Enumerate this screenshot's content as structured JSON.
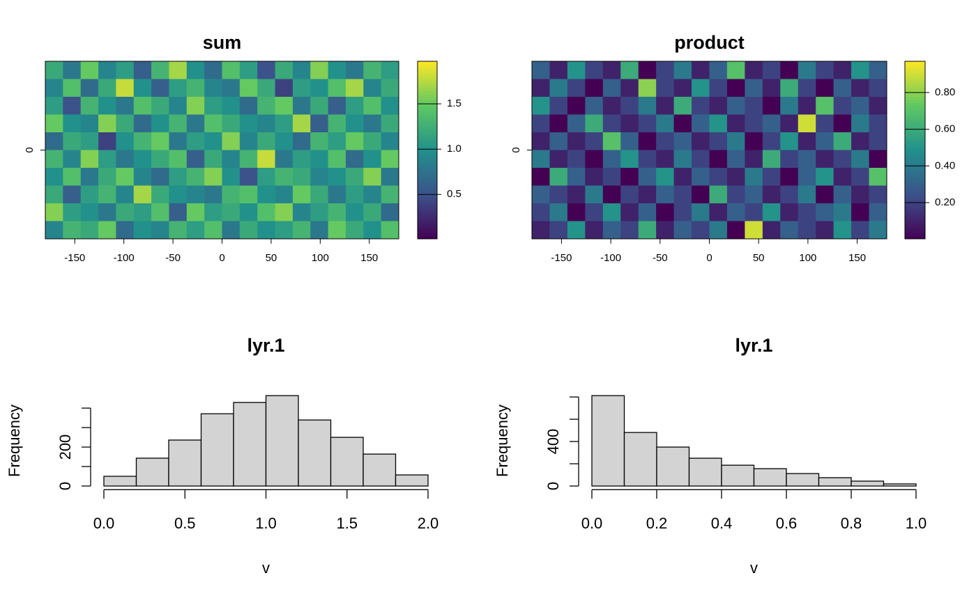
{
  "chart_data": [
    {
      "type": "raster",
      "title": "sum",
      "xlim": [
        -180,
        180
      ],
      "ylim": [
        -90,
        90
      ],
      "xticks": [
        -150,
        -100,
        -50,
        0,
        50,
        100,
        150
      ],
      "yticks": [
        0
      ],
      "zlim": [
        0.01,
        1.97
      ],
      "zticks": [
        {
          "value": 0.5,
          "label": "0.5"
        },
        {
          "value": 1.0,
          "label": "1.0"
        },
        {
          "value": 1.5,
          "label": "1.5"
        }
      ],
      "colors": [
        "#440154",
        "#3b528b",
        "#21908c",
        "#5dc863",
        "#fde725"
      ],
      "values": [
        [
          1.2,
          0.8,
          1.5,
          0.9,
          1.1,
          0.6,
          1.3,
          1.7,
          1.0,
          0.7,
          1.4,
          1.1,
          0.5,
          1.2,
          0.9,
          1.6,
          1.0,
          0.8,
          1.3,
          1.1
        ],
        [
          0.9,
          1.4,
          0.7,
          1.2,
          1.8,
          1.0,
          0.6,
          1.1,
          1.3,
          0.9,
          0.8,
          1.5,
          1.2,
          0.4,
          1.1,
          1.0,
          1.4,
          1.7,
          0.9,
          1.2
        ],
        [
          1.1,
          0.5,
          1.3,
          1.0,
          0.8,
          1.4,
          1.2,
          0.9,
          1.6,
          1.1,
          1.0,
          0.7,
          1.3,
          1.5,
          0.8,
          1.2,
          0.6,
          1.1,
          1.4,
          1.0
        ],
        [
          1.5,
          1.0,
          0.9,
          1.6,
          1.2,
          0.7,
          1.0,
          1.3,
          0.8,
          1.4,
          1.2,
          1.0,
          0.9,
          1.1,
          1.7,
          0.6,
          1.3,
          1.0,
          0.8,
          1.2
        ],
        [
          0.7,
          1.2,
          1.1,
          0.4,
          1.0,
          1.3,
          1.5,
          0.8,
          1.1,
          1.0,
          1.6,
          0.9,
          1.2,
          1.0,
          0.7,
          1.3,
          1.1,
          1.5,
          1.2,
          0.9
        ],
        [
          1.3,
          0.9,
          1.6,
          1.1,
          0.8,
          1.0,
          1.2,
          1.4,
          0.6,
          1.2,
          0.9,
          1.3,
          1.8,
          0.8,
          1.1,
          1.0,
          1.4,
          0.7,
          1.0,
          1.5
        ],
        [
          1.0,
          1.4,
          0.8,
          1.2,
          1.5,
          0.9,
          0.7,
          1.1,
          1.3,
          1.6,
          1.0,
          0.5,
          1.1,
          1.3,
          1.2,
          0.9,
          1.0,
          1.2,
          1.6,
          0.8
        ],
        [
          1.2,
          0.6,
          1.1,
          1.3,
          0.9,
          1.7,
          1.2,
          1.0,
          0.9,
          0.8,
          1.3,
          1.4,
          1.0,
          0.9,
          1.5,
          1.2,
          0.8,
          1.1,
          0.9,
          1.3
        ],
        [
          1.6,
          1.1,
          1.0,
          0.8,
          1.2,
          1.1,
          1.4,
          0.6,
          1.5,
          1.1,
          1.2,
          1.0,
          1.4,
          1.6,
          0.9,
          1.1,
          1.3,
          1.0,
          1.2,
          0.7
        ],
        [
          0.9,
          1.3,
          1.2,
          1.5,
          0.7,
          1.0,
          0.9,
          1.3,
          1.1,
          1.4,
          0.8,
          1.2,
          1.0,
          1.1,
          1.3,
          0.8,
          1.5,
          1.2,
          1.0,
          1.4
        ]
      ]
    },
    {
      "type": "raster",
      "title": "product",
      "xlim": [
        -180,
        180
      ],
      "ylim": [
        -90,
        90
      ],
      "xticks": [
        -150,
        -100,
        -50,
        0,
        50,
        100,
        150
      ],
      "yticks": [
        0
      ],
      "zlim": [
        0.003,
        0.97
      ],
      "zticks": [
        {
          "value": 0.2,
          "label": "0.20"
        },
        {
          "value": 0.4,
          "label": "0.40"
        },
        {
          "value": 0.6,
          "label": "0.60"
        },
        {
          "value": 0.8,
          "label": "0.80"
        }
      ],
      "colors": [
        "#440154",
        "#3b528b",
        "#21908c",
        "#5dc863",
        "#fde725"
      ],
      "values": [
        [
          0.3,
          0.1,
          0.5,
          0.2,
          0.1,
          0.6,
          0.0,
          0.2,
          0.4,
          0.1,
          0.3,
          0.7,
          0.1,
          0.2,
          0.0,
          0.4,
          0.2,
          0.1,
          0.5,
          0.3
        ],
        [
          0.1,
          0.4,
          0.2,
          0.0,
          0.3,
          0.1,
          0.8,
          0.2,
          0.1,
          0.5,
          0.2,
          0.0,
          0.3,
          0.1,
          0.6,
          0.2,
          0.0,
          0.3,
          0.1,
          0.2
        ],
        [
          0.5,
          0.2,
          0.0,
          0.3,
          0.1,
          0.2,
          0.4,
          0.1,
          0.6,
          0.2,
          0.1,
          0.3,
          0.2,
          0.0,
          0.4,
          0.1,
          0.7,
          0.2,
          0.3,
          0.1
        ],
        [
          0.2,
          0.0,
          0.3,
          0.6,
          0.2,
          0.1,
          0.2,
          0.4,
          0.0,
          0.3,
          0.5,
          0.1,
          0.2,
          0.3,
          0.1,
          0.9,
          0.2,
          0.0,
          0.4,
          0.2
        ],
        [
          0.1,
          0.3,
          0.1,
          0.2,
          0.7,
          0.3,
          0.0,
          0.2,
          0.3,
          0.1,
          0.2,
          0.4,
          0.0,
          0.2,
          0.5,
          0.1,
          0.3,
          0.6,
          0.1,
          0.2
        ],
        [
          0.4,
          0.1,
          0.2,
          0.0,
          0.3,
          0.5,
          0.2,
          0.1,
          0.4,
          0.2,
          0.0,
          0.3,
          0.1,
          0.6,
          0.2,
          0.3,
          0.1,
          0.2,
          0.4,
          0.0
        ],
        [
          0.0,
          0.6,
          0.3,
          0.1,
          0.2,
          0.0,
          0.3,
          0.5,
          0.1,
          0.3,
          0.2,
          0.1,
          0.4,
          0.2,
          0.0,
          0.3,
          0.5,
          0.1,
          0.2,
          0.7
        ],
        [
          0.3,
          0.2,
          0.1,
          0.4,
          0.0,
          0.2,
          0.1,
          0.3,
          0.2,
          0.0,
          0.6,
          0.2,
          0.3,
          0.1,
          0.2,
          0.4,
          0.0,
          0.3,
          0.1,
          0.2
        ],
        [
          0.2,
          0.4,
          0.0,
          0.2,
          0.5,
          0.1,
          0.3,
          0.0,
          0.2,
          0.4,
          0.1,
          0.3,
          0.2,
          0.5,
          0.1,
          0.2,
          0.3,
          0.4,
          0.0,
          0.3
        ],
        [
          0.1,
          0.2,
          0.5,
          0.1,
          0.3,
          0.2,
          0.6,
          0.1,
          0.3,
          0.2,
          0.4,
          0.0,
          0.9,
          0.1,
          0.3,
          0.2,
          0.1,
          0.5,
          0.2,
          0.4
        ]
      ]
    },
    {
      "type": "histogram",
      "title": "lyr.1",
      "x_label": "v",
      "y_label": "Frequency",
      "color": "#d3d3d3",
      "bins": [
        0,
        0.2,
        0.4,
        0.6,
        0.8,
        1.0,
        1.2,
        1.4,
        1.6,
        1.8,
        2.0
      ],
      "values": [
        50,
        143,
        236,
        371,
        429,
        464,
        339,
        250,
        164,
        57
      ],
      "xlim": [
        -0.08,
        2.08
      ],
      "ylim": [
        -18.6,
        482.6
      ],
      "xticks": [
        {
          "value": 0,
          "label": "0.0"
        },
        0.5,
        {
          "value": 1,
          "label": "1.0"
        },
        1.5,
        {
          "value": 2,
          "label": "2.0"
        }
      ],
      "yticks": [
        0,
        200
      ],
      "yminor_ticks": [
        100,
        300,
        400
      ]
    },
    {
      "type": "histogram",
      "title": "lyr.1",
      "x_label": "v",
      "y_label": "Frequency",
      "color": "#d3d3d3",
      "bins": [
        0,
        0.1,
        0.2,
        0.3,
        0.4,
        0.5,
        0.6,
        0.7,
        0.8,
        0.9,
        1.0
      ],
      "values": [
        812,
        481,
        350,
        250,
        187,
        156,
        112,
        75,
        44,
        19
      ],
      "xlim": [
        -0.04,
        1.04
      ],
      "ylim": [
        -32.5,
        844.5
      ],
      "xticks": [
        {
          "value": 0,
          "label": "0.0"
        },
        0.2,
        0.4,
        0.6,
        0.8,
        {
          "value": 1,
          "label": "1.0"
        }
      ],
      "yticks": [
        0,
        400
      ],
      "yminor_ticks": [
        200,
        600,
        800
      ]
    }
  ]
}
